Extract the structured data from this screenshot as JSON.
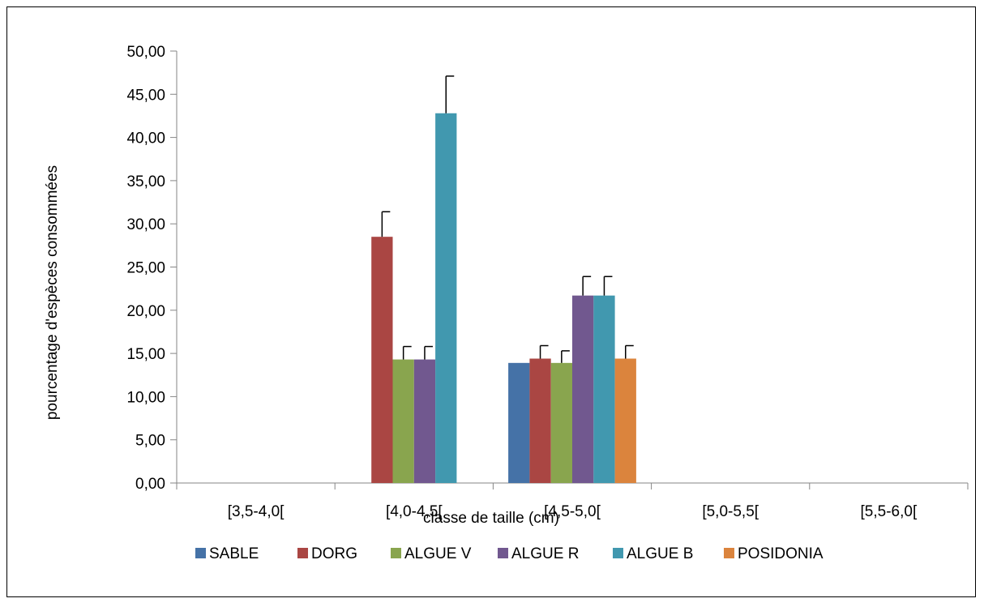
{
  "chart_data": {
    "type": "bar",
    "title": "",
    "xlabel": "classe de taille  (cm)",
    "ylabel": "pourcentage d'espèces consommées",
    "ylim": [
      0,
      50
    ],
    "yticks": [
      "0,00",
      "5,00",
      "10,00",
      "15,00",
      "20,00",
      "25,00",
      "30,00",
      "35,00",
      "40,00",
      "45,00",
      "50,00"
    ],
    "categories": [
      "[3,5-4,0[",
      "[4,0-4,5[",
      "[4,5-5,0[",
      "[5,0-5,5[",
      "[5,5-6,0["
    ],
    "legend_position": "bottom",
    "grid": false,
    "error_bars": true,
    "series": [
      {
        "name": "SABLE",
        "color": "#4572A7",
        "values": [
          0,
          0,
          13.9,
          0,
          0
        ],
        "errors": [
          0,
          0,
          0,
          0,
          0
        ]
      },
      {
        "name": "DORG",
        "color": "#AA4643",
        "values": [
          0,
          28.5,
          14.4,
          0,
          0
        ],
        "errors": [
          0,
          2.9,
          1.5,
          0,
          0
        ]
      },
      {
        "name": "ALGUE V",
        "color": "#89A54E",
        "values": [
          0,
          14.3,
          13.9,
          0,
          0
        ],
        "errors": [
          0,
          1.5,
          1.4,
          0,
          0
        ]
      },
      {
        "name": "ALGUE  R",
        "color": "#71588F",
        "values": [
          0,
          14.3,
          21.7,
          0,
          0
        ],
        "errors": [
          0,
          1.5,
          2.2,
          0,
          0
        ]
      },
      {
        "name": "ALGUE B",
        "color": "#4198AF",
        "values": [
          0,
          42.8,
          21.7,
          0,
          0
        ],
        "errors": [
          0,
          4.3,
          2.2,
          0,
          0
        ]
      },
      {
        "name": "POSIDONIA",
        "color": "#DB843D",
        "values": [
          0,
          0,
          14.4,
          0,
          0
        ],
        "errors": [
          0,
          0,
          1.5,
          0,
          0
        ]
      }
    ]
  }
}
